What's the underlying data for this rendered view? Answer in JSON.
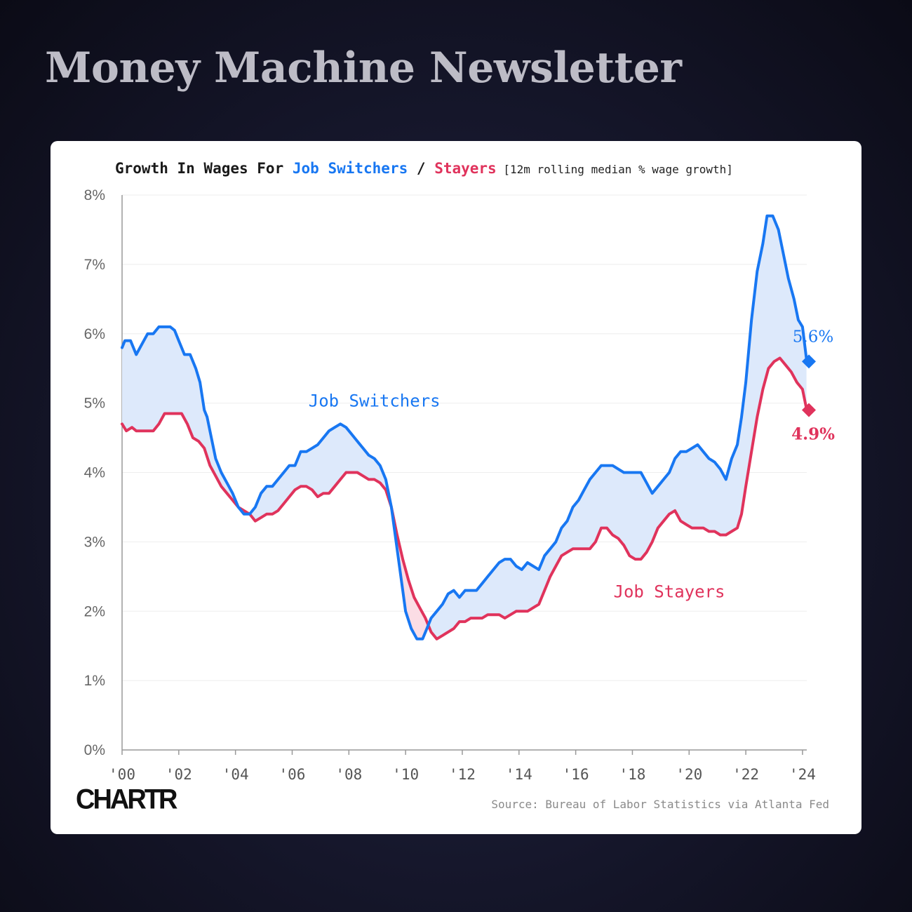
{
  "page": {
    "headline": "Money Machine Newsletter",
    "logo": "CHARTR",
    "source": "Source: Bureau of Labor Statistics via Atlanta Fed"
  },
  "chart_data": {
    "type": "line",
    "title_parts": {
      "prefix": "Growth In Wages For ",
      "series1": "Job Switchers",
      "separator": " / ",
      "series2": "Stayers",
      "note": " [12m rolling median % wage growth]"
    },
    "xlabel": "",
    "ylabel": "",
    "xlim": [
      2000,
      2024.3
    ],
    "ylim": [
      0,
      8
    ],
    "y_ticks": [
      0,
      1,
      2,
      3,
      4,
      5,
      6,
      7,
      8
    ],
    "y_tick_labels": [
      "0%",
      "1%",
      "2%",
      "3%",
      "4%",
      "5%",
      "6%",
      "7%",
      "8%"
    ],
    "x_ticks": [
      2000,
      2002,
      2004,
      2006,
      2008,
      2010,
      2012,
      2014,
      2016,
      2018,
      2020,
      2022,
      2024
    ],
    "x_tick_labels": [
      "'00",
      "'02",
      "'04",
      "'06",
      "'08",
      "'10",
      "'12",
      "'14",
      "'16",
      "'18",
      "'20",
      "'22",
      "'24"
    ],
    "grid": true,
    "area_between_series": true,
    "colors": {
      "switchers": "#1877f2",
      "stayers": "#e0335c",
      "fill_switchers_above": "#dde9fb",
      "fill_stayers_above": "#fbdde5",
      "grid": "#eeeeee",
      "axis": "#999999"
    },
    "series": [
      {
        "name": "Job Switchers",
        "color": "#1877f2",
        "points": [
          [
            2000.0,
            5.8
          ],
          [
            2000.1,
            5.9
          ],
          [
            2000.3,
            5.9
          ],
          [
            2000.5,
            5.7
          ],
          [
            2000.7,
            5.85
          ],
          [
            2000.9,
            6.0
          ],
          [
            2001.1,
            6.0
          ],
          [
            2001.3,
            6.1
          ],
          [
            2001.5,
            6.1
          ],
          [
            2001.7,
            6.1
          ],
          [
            2001.85,
            6.05
          ],
          [
            2002.0,
            5.9
          ],
          [
            2002.2,
            5.7
          ],
          [
            2002.4,
            5.7
          ],
          [
            2002.6,
            5.5
          ],
          [
            2002.75,
            5.3
          ],
          [
            2002.9,
            4.9
          ],
          [
            2003.0,
            4.8
          ],
          [
            2003.15,
            4.5
          ],
          [
            2003.3,
            4.2
          ],
          [
            2003.5,
            4.0
          ],
          [
            2003.7,
            3.85
          ],
          [
            2003.9,
            3.7
          ],
          [
            2004.1,
            3.5
          ],
          [
            2004.3,
            3.4
          ],
          [
            2004.5,
            3.4
          ],
          [
            2004.7,
            3.5
          ],
          [
            2004.9,
            3.7
          ],
          [
            2005.1,
            3.8
          ],
          [
            2005.3,
            3.8
          ],
          [
            2005.5,
            3.9
          ],
          [
            2005.7,
            4.0
          ],
          [
            2005.9,
            4.1
          ],
          [
            2006.1,
            4.1
          ],
          [
            2006.3,
            4.3
          ],
          [
            2006.5,
            4.3
          ],
          [
            2006.7,
            4.35
          ],
          [
            2006.9,
            4.4
          ],
          [
            2007.1,
            4.5
          ],
          [
            2007.3,
            4.6
          ],
          [
            2007.5,
            4.65
          ],
          [
            2007.7,
            4.7
          ],
          [
            2007.9,
            4.65
          ],
          [
            2008.1,
            4.55
          ],
          [
            2008.3,
            4.45
          ],
          [
            2008.5,
            4.35
          ],
          [
            2008.7,
            4.25
          ],
          [
            2008.9,
            4.2
          ],
          [
            2009.1,
            4.1
          ],
          [
            2009.3,
            3.9
          ],
          [
            2009.5,
            3.5
          ],
          [
            2009.7,
            2.9
          ],
          [
            2009.9,
            2.3
          ],
          [
            2010.0,
            2.0
          ],
          [
            2010.2,
            1.75
          ],
          [
            2010.4,
            1.6
          ],
          [
            2010.6,
            1.6
          ],
          [
            2010.75,
            1.75
          ],
          [
            2010.9,
            1.9
          ],
          [
            2011.1,
            2.0
          ],
          [
            2011.3,
            2.1
          ],
          [
            2011.5,
            2.25
          ],
          [
            2011.7,
            2.3
          ],
          [
            2011.9,
            2.2
          ],
          [
            2012.1,
            2.3
          ],
          [
            2012.3,
            2.3
          ],
          [
            2012.5,
            2.3
          ],
          [
            2012.7,
            2.4
          ],
          [
            2012.9,
            2.5
          ],
          [
            2013.1,
            2.6
          ],
          [
            2013.3,
            2.7
          ],
          [
            2013.5,
            2.75
          ],
          [
            2013.7,
            2.75
          ],
          [
            2013.9,
            2.65
          ],
          [
            2014.1,
            2.6
          ],
          [
            2014.3,
            2.7
          ],
          [
            2014.5,
            2.65
          ],
          [
            2014.7,
            2.6
          ],
          [
            2014.9,
            2.8
          ],
          [
            2015.1,
            2.9
          ],
          [
            2015.3,
            3.0
          ],
          [
            2015.5,
            3.2
          ],
          [
            2015.7,
            3.3
          ],
          [
            2015.9,
            3.5
          ],
          [
            2016.1,
            3.6
          ],
          [
            2016.3,
            3.75
          ],
          [
            2016.5,
            3.9
          ],
          [
            2016.7,
            4.0
          ],
          [
            2016.9,
            4.1
          ],
          [
            2017.1,
            4.1
          ],
          [
            2017.3,
            4.1
          ],
          [
            2017.5,
            4.05
          ],
          [
            2017.7,
            4.0
          ],
          [
            2017.9,
            4.0
          ],
          [
            2018.1,
            4.0
          ],
          [
            2018.3,
            4.0
          ],
          [
            2018.5,
            3.85
          ],
          [
            2018.7,
            3.7
          ],
          [
            2018.9,
            3.8
          ],
          [
            2019.1,
            3.9
          ],
          [
            2019.3,
            4.0
          ],
          [
            2019.5,
            4.2
          ],
          [
            2019.7,
            4.3
          ],
          [
            2019.9,
            4.3
          ],
          [
            2020.1,
            4.35
          ],
          [
            2020.3,
            4.4
          ],
          [
            2020.5,
            4.3
          ],
          [
            2020.7,
            4.2
          ],
          [
            2020.9,
            4.15
          ],
          [
            2021.1,
            4.05
          ],
          [
            2021.3,
            3.9
          ],
          [
            2021.5,
            4.2
          ],
          [
            2021.7,
            4.4
          ],
          [
            2021.85,
            4.8
          ],
          [
            2022.0,
            5.3
          ],
          [
            2022.2,
            6.2
          ],
          [
            2022.4,
            6.9
          ],
          [
            2022.6,
            7.3
          ],
          [
            2022.75,
            7.7
          ],
          [
            2022.95,
            7.7
          ],
          [
            2023.15,
            7.5
          ],
          [
            2023.35,
            7.1
          ],
          [
            2023.5,
            6.8
          ],
          [
            2023.7,
            6.5
          ],
          [
            2023.85,
            6.2
          ],
          [
            2024.0,
            6.1
          ],
          [
            2024.15,
            5.6
          ]
        ],
        "end_value": 5.6,
        "end_label": "5.6%",
        "inline_label": "Job Switchers"
      },
      {
        "name": "Job Stayers",
        "color": "#e0335c",
        "points": [
          [
            2000.0,
            4.7
          ],
          [
            2000.15,
            4.6
          ],
          [
            2000.35,
            4.65
          ],
          [
            2000.5,
            4.6
          ],
          [
            2000.7,
            4.6
          ],
          [
            2000.9,
            4.6
          ],
          [
            2001.1,
            4.6
          ],
          [
            2001.3,
            4.7
          ],
          [
            2001.5,
            4.85
          ],
          [
            2001.7,
            4.85
          ],
          [
            2001.9,
            4.85
          ],
          [
            2002.1,
            4.85
          ],
          [
            2002.3,
            4.7
          ],
          [
            2002.5,
            4.5
          ],
          [
            2002.7,
            4.45
          ],
          [
            2002.9,
            4.35
          ],
          [
            2003.1,
            4.1
          ],
          [
            2003.3,
            3.95
          ],
          [
            2003.5,
            3.8
          ],
          [
            2003.7,
            3.7
          ],
          [
            2003.9,
            3.6
          ],
          [
            2004.1,
            3.5
          ],
          [
            2004.3,
            3.45
          ],
          [
            2004.5,
            3.4
          ],
          [
            2004.7,
            3.3
          ],
          [
            2004.9,
            3.35
          ],
          [
            2005.1,
            3.4
          ],
          [
            2005.3,
            3.4
          ],
          [
            2005.5,
            3.45
          ],
          [
            2005.7,
            3.55
          ],
          [
            2005.9,
            3.65
          ],
          [
            2006.1,
            3.75
          ],
          [
            2006.3,
            3.8
          ],
          [
            2006.5,
            3.8
          ],
          [
            2006.7,
            3.75
          ],
          [
            2006.9,
            3.65
          ],
          [
            2007.1,
            3.7
          ],
          [
            2007.3,
            3.7
          ],
          [
            2007.5,
            3.8
          ],
          [
            2007.7,
            3.9
          ],
          [
            2007.9,
            4.0
          ],
          [
            2008.1,
            4.0
          ],
          [
            2008.3,
            4.0
          ],
          [
            2008.5,
            3.95
          ],
          [
            2008.7,
            3.9
          ],
          [
            2008.9,
            3.9
          ],
          [
            2009.1,
            3.85
          ],
          [
            2009.3,
            3.75
          ],
          [
            2009.5,
            3.5
          ],
          [
            2009.7,
            3.1
          ],
          [
            2009.9,
            2.75
          ],
          [
            2010.1,
            2.45
          ],
          [
            2010.3,
            2.2
          ],
          [
            2010.5,
            2.05
          ],
          [
            2010.7,
            1.9
          ],
          [
            2010.9,
            1.7
          ],
          [
            2011.1,
            1.6
          ],
          [
            2011.3,
            1.65
          ],
          [
            2011.5,
            1.7
          ],
          [
            2011.7,
            1.75
          ],
          [
            2011.9,
            1.85
          ],
          [
            2012.1,
            1.85
          ],
          [
            2012.3,
            1.9
          ],
          [
            2012.5,
            1.9
          ],
          [
            2012.7,
            1.9
          ],
          [
            2012.9,
            1.95
          ],
          [
            2013.1,
            1.95
          ],
          [
            2013.3,
            1.95
          ],
          [
            2013.5,
            1.9
          ],
          [
            2013.7,
            1.95
          ],
          [
            2013.9,
            2.0
          ],
          [
            2014.1,
            2.0
          ],
          [
            2014.3,
            2.0
          ],
          [
            2014.5,
            2.05
          ],
          [
            2014.7,
            2.1
          ],
          [
            2014.9,
            2.3
          ],
          [
            2015.1,
            2.5
          ],
          [
            2015.3,
            2.65
          ],
          [
            2015.5,
            2.8
          ],
          [
            2015.7,
            2.85
          ],
          [
            2015.9,
            2.9
          ],
          [
            2016.1,
            2.9
          ],
          [
            2016.3,
            2.9
          ],
          [
            2016.5,
            2.9
          ],
          [
            2016.7,
            3.0
          ],
          [
            2016.9,
            3.2
          ],
          [
            2017.1,
            3.2
          ],
          [
            2017.3,
            3.1
          ],
          [
            2017.5,
            3.05
          ],
          [
            2017.7,
            2.95
          ],
          [
            2017.9,
            2.8
          ],
          [
            2018.1,
            2.75
          ],
          [
            2018.3,
            2.75
          ],
          [
            2018.5,
            2.85
          ],
          [
            2018.7,
            3.0
          ],
          [
            2018.9,
            3.2
          ],
          [
            2019.1,
            3.3
          ],
          [
            2019.3,
            3.4
          ],
          [
            2019.5,
            3.45
          ],
          [
            2019.7,
            3.3
          ],
          [
            2019.9,
            3.25
          ],
          [
            2020.1,
            3.2
          ],
          [
            2020.3,
            3.2
          ],
          [
            2020.5,
            3.2
          ],
          [
            2020.7,
            3.15
          ],
          [
            2020.9,
            3.15
          ],
          [
            2021.1,
            3.1
          ],
          [
            2021.3,
            3.1
          ],
          [
            2021.5,
            3.15
          ],
          [
            2021.7,
            3.2
          ],
          [
            2021.85,
            3.4
          ],
          [
            2022.0,
            3.8
          ],
          [
            2022.2,
            4.3
          ],
          [
            2022.4,
            4.8
          ],
          [
            2022.6,
            5.2
          ],
          [
            2022.8,
            5.5
          ],
          [
            2023.0,
            5.6
          ],
          [
            2023.2,
            5.65
          ],
          [
            2023.4,
            5.55
          ],
          [
            2023.6,
            5.45
          ],
          [
            2023.8,
            5.3
          ],
          [
            2024.0,
            5.2
          ],
          [
            2024.15,
            4.9
          ]
        ],
        "end_value": 4.9,
        "end_label": "4.9%",
        "inline_label": "Job Stayers"
      }
    ]
  }
}
